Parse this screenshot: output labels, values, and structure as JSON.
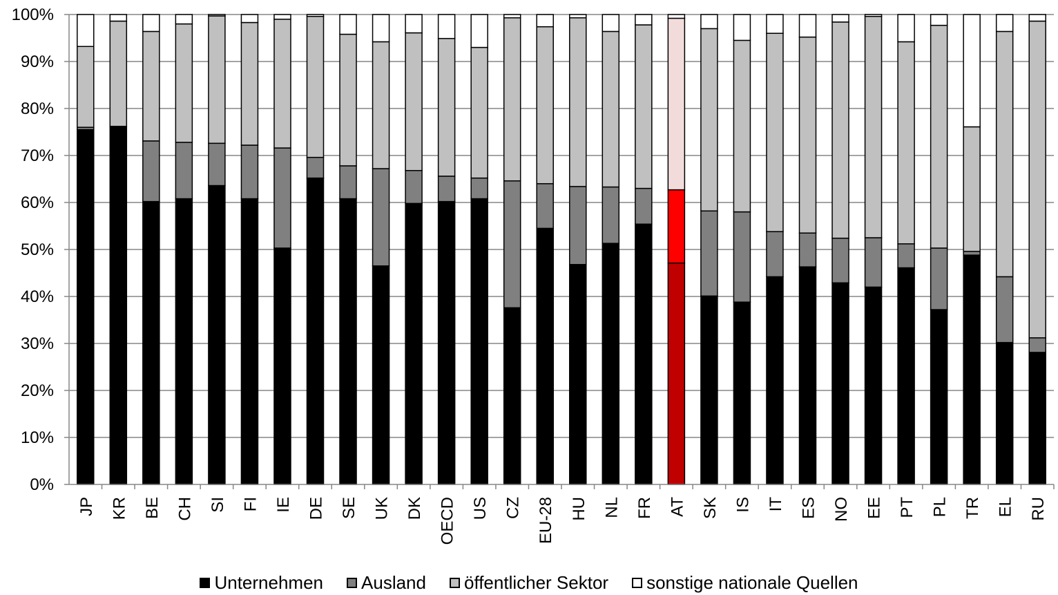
{
  "chart_data": {
    "type": "bar",
    "stacked": true,
    "orientation": "vertical",
    "y_axis": {
      "min": 0,
      "max": 100,
      "step": 10,
      "format": "percent",
      "tick_labels": [
        "0%",
        "10%",
        "20%",
        "30%",
        "40%",
        "50%",
        "60%",
        "70%",
        "80%",
        "90%",
        "100%"
      ]
    },
    "gridlines": true,
    "legend_position": "bottom",
    "categories": [
      "JP",
      "KR",
      "BE",
      "CH",
      "SI",
      "FI",
      "IE",
      "DE",
      "SE",
      "UK",
      "DK",
      "OECD",
      "US",
      "CZ",
      "EU-28",
      "HU",
      "NL",
      "FR",
      "AT",
      "SK",
      "IS",
      "IT",
      "ES",
      "NO",
      "EE",
      "PT",
      "PL",
      "TR",
      "EL",
      "RU"
    ],
    "highlight_category": "AT",
    "series": [
      {
        "name": "Unternehmen",
        "color": "#000000",
        "highlight_color": "#c00000",
        "values": [
          75.5,
          76.1,
          60.2,
          60.8,
          63.6,
          60.8,
          50.3,
          65.2,
          60.8,
          46.5,
          59.8,
          60.2,
          60.8,
          37.6,
          54.5,
          46.8,
          51.3,
          55.4,
          47.1,
          40.1,
          38.8,
          44.2,
          46.3,
          42.9,
          42.0,
          46.1,
          37.2,
          48.8,
          30.2,
          28.1
        ]
      },
      {
        "name": "Ausland",
        "color": "#808080",
        "highlight_color": "#ff0000",
        "values": [
          0.5,
          0.1,
          12.9,
          12.0,
          9.0,
          11.4,
          21.3,
          4.4,
          7.0,
          20.7,
          7.0,
          5.4,
          4.4,
          27.0,
          9.5,
          16.6,
          12.0,
          7.6,
          15.6,
          18.1,
          19.2,
          9.6,
          7.2,
          9.5,
          10.5,
          5.1,
          13.1,
          0.8,
          14.0,
          3.1
        ]
      },
      {
        "name": "öffentlicher Sektor",
        "color": "#c0c0c0",
        "highlight_color": "#f2dcdb",
        "values": [
          17.2,
          22.4,
          23.3,
          25.2,
          27.1,
          26.1,
          27.4,
          30.0,
          28.0,
          27.0,
          29.3,
          29.3,
          27.8,
          34.7,
          33.4,
          35.9,
          33.1,
          34.8,
          36.5,
          38.8,
          36.5,
          42.2,
          41.7,
          46.0,
          47.1,
          43.0,
          47.4,
          26.5,
          52.2,
          67.4
        ]
      },
      {
        "name": "sonstige nationale Quellen",
        "color": "#ffffff",
        "highlight_color": "#ffffff",
        "values": [
          6.8,
          1.4,
          3.6,
          2.0,
          0.3,
          1.7,
          1.0,
          0.4,
          4.2,
          5.8,
          3.9,
          5.1,
          7.0,
          0.7,
          2.6,
          0.7,
          3.6,
          2.2,
          0.8,
          3.0,
          5.5,
          4.0,
          4.8,
          1.6,
          0.4,
          5.8,
          2.3,
          23.9,
          3.6,
          1.4
        ]
      }
    ]
  }
}
